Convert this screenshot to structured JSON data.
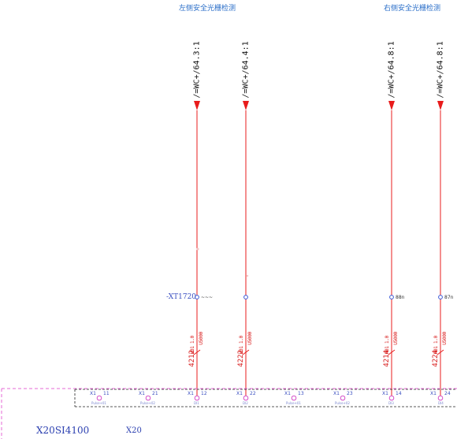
{
  "headers": {
    "left": "左侧安全光栅检测",
    "right": "右侧安全光栅检测"
  },
  "references": [
    "/=WC+/64.3:1",
    "/=WC+/64.4:1",
    "/=WC+/64.8:1",
    "/=WC+/64.8:1"
  ],
  "device_tag": "-XT1720",
  "node_labels": [
    "~~~",
    "88n",
    "87n"
  ],
  "wires": [
    {
      "number": "4212",
      "spec": "H01 1.0",
      "code": "U5000"
    },
    {
      "number": "4222",
      "spec": "H01 1.0",
      "code": "U5000"
    },
    {
      "number": "4214",
      "spec": "H01 1.0",
      "code": "U5000"
    },
    {
      "number": "4224",
      "spec": "H01 1.0",
      "code": "U5000"
    }
  ],
  "terminals": [
    {
      "prefix": "X1",
      "number": "11",
      "sub": "Pulse+01"
    },
    {
      "prefix": "X1",
      "number": "21",
      "sub": "Pulse+02"
    },
    {
      "prefix": "X1",
      "number": "12",
      "sub": "DI1"
    },
    {
      "prefix": "X1",
      "number": "22",
      "sub": "DI2"
    },
    {
      "prefix": "X1",
      "number": "13",
      "sub": "Pulse+01"
    },
    {
      "prefix": "X1",
      "number": "23",
      "sub": "Pulse+02"
    },
    {
      "prefix": "X1",
      "number": "14",
      "sub": "DI3"
    },
    {
      "prefix": "X1",
      "number": "24",
      "sub": "DI4"
    }
  ],
  "module": {
    "name": "X20SI4100",
    "connector": "X20"
  },
  "colors": {
    "wire": "#e81c1c",
    "terminal": "#d44ec8",
    "node": "#3a58d6",
    "frame": "#e46ad6",
    "header": "#2a6ec8"
  }
}
